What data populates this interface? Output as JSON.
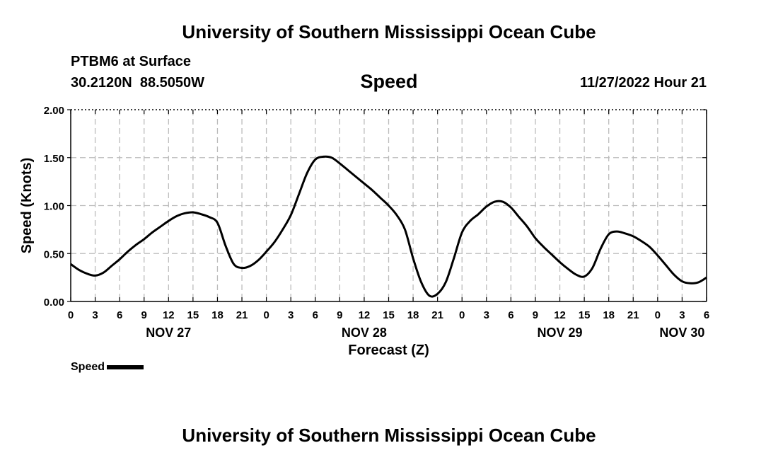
{
  "header": {
    "title_top": "University of Southern Mississippi Ocean Cube",
    "station_line": "PTBM6 at Surface",
    "coords_line": "30.2120N  88.5050W",
    "datetime": "11/27/2022 Hour 21",
    "title_bottom": "University of Southern Mississippi Ocean Cube"
  },
  "legend": {
    "label": "Speed",
    "color": "#000000"
  },
  "colors": {
    "line": "#000000",
    "grid": "#bbbbbb",
    "axis": "#000000"
  },
  "chart_data": {
    "type": "line",
    "title": "Speed",
    "xlabel": "Forecast (Z)",
    "ylabel": "Speed (Knots)",
    "xlim": [
      0,
      78
    ],
    "ylim": [
      0,
      2
    ],
    "grid": true,
    "legend_position": "bottom-left",
    "yticks": [
      0,
      0.5,
      1,
      1.5,
      2
    ],
    "ytick_labels": [
      "0.00",
      "0.50",
      "1.00",
      "1.50",
      "2.00"
    ],
    "xticks": [
      0,
      3,
      6,
      9,
      12,
      15,
      18,
      21,
      24,
      27,
      30,
      33,
      36,
      39,
      42,
      45,
      48,
      51,
      54,
      57,
      60,
      63,
      66,
      69,
      72,
      75,
      78
    ],
    "xtick_labels": [
      "0",
      "3",
      "6",
      "9",
      "12",
      "15",
      "18",
      "21",
      "0",
      "3",
      "6",
      "9",
      "12",
      "15",
      "18",
      "21",
      "0",
      "3",
      "6",
      "9",
      "12",
      "15",
      "18",
      "21",
      "0",
      "3",
      "6"
    ],
    "date_labels": [
      {
        "x": 12,
        "label": "NOV 27"
      },
      {
        "x": 36,
        "label": "NOV 28"
      },
      {
        "x": 60,
        "label": "NOV 29"
      },
      {
        "x": 75,
        "label": "NOV 30"
      }
    ],
    "series": [
      {
        "name": "Speed",
        "x": [
          0,
          1,
          2,
          3,
          4,
          5,
          6,
          7,
          8,
          9,
          10,
          11,
          12,
          13,
          14,
          15,
          16,
          17,
          18,
          19,
          20,
          21,
          22,
          23,
          24,
          25,
          26,
          27,
          28,
          29,
          30,
          31,
          32,
          33,
          34,
          35,
          36,
          37,
          38,
          39,
          40,
          41,
          42,
          43,
          44,
          45,
          46,
          47,
          48,
          49,
          50,
          51,
          52,
          53,
          54,
          55,
          56,
          57,
          58,
          59,
          60,
          61,
          62,
          63,
          64,
          65,
          66,
          67,
          68,
          69,
          70,
          71,
          72,
          73,
          74,
          75,
          76,
          77,
          78
        ],
        "values": [
          0.39,
          0.33,
          0.29,
          0.27,
          0.3,
          0.37,
          0.44,
          0.52,
          0.59,
          0.65,
          0.72,
          0.78,
          0.84,
          0.89,
          0.92,
          0.93,
          0.91,
          0.88,
          0.82,
          0.58,
          0.39,
          0.35,
          0.37,
          0.43,
          0.52,
          0.62,
          0.75,
          0.9,
          1.12,
          1.34,
          1.48,
          1.51,
          1.5,
          1.44,
          1.37,
          1.3,
          1.23,
          1.16,
          1.08,
          1.0,
          0.9,
          0.75,
          0.45,
          0.2,
          0.06,
          0.08,
          0.2,
          0.45,
          0.72,
          0.84,
          0.91,
          0.99,
          1.04,
          1.04,
          0.98,
          0.88,
          0.78,
          0.66,
          0.57,
          0.49,
          0.41,
          0.34,
          0.28,
          0.26,
          0.35,
          0.55,
          0.7,
          0.73,
          0.71,
          0.68,
          0.63,
          0.57,
          0.48,
          0.38,
          0.28,
          0.21,
          0.19,
          0.2,
          0.25
        ]
      }
    ]
  }
}
